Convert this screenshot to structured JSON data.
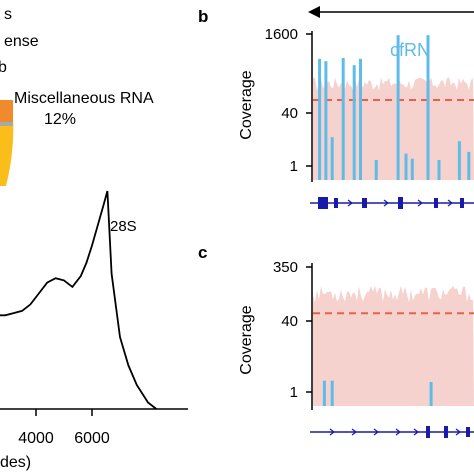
{
  "colors": {
    "axis": "#000000",
    "coverage_bar": "#5fbbe8",
    "background_fill": "#f6d2cf",
    "threshold_line": "#e8604c",
    "gene_model": "#1a1aa8",
    "pie_orange": "#f08a2c",
    "pie_gold": "#fbbd1a",
    "pie_gray": "#a8a8a8",
    "trace": "#000000"
  },
  "panel_a": {
    "legend_fragments": [
      "s",
      "ense",
      "b"
    ],
    "pie_label": "Miscellaneous RNA",
    "pie_percent": "12%",
    "peak_label": "28S",
    "x_ticks": [
      "4000",
      "6000"
    ],
    "x_label_fragment": "des)"
  },
  "panel_b": {
    "letter": "b",
    "ylabel": "Coverage",
    "y_ticks": [
      "1600",
      "40",
      "1"
    ],
    "series_label": "cfRN",
    "arrow": "leftward"
  },
  "panel_c": {
    "letter": "c",
    "ylabel": "Coverage",
    "y_ticks": [
      "350",
      "40",
      "1"
    ]
  },
  "chart_data": [
    {
      "type": "pie",
      "slices": [
        {
          "label": "Miscellaneous RNA",
          "value": 12
        }
      ]
    },
    {
      "type": "line",
      "xlabel": "des)",
      "x_ticks": [
        4000,
        6000
      ],
      "xlim": [
        1400,
        8300
      ],
      "ylim": [
        0,
        1
      ],
      "annotations": [
        "28S"
      ],
      "x": [
        1400,
        1700,
        2000,
        2300,
        2600,
        2900,
        3200,
        3500,
        3800,
        4100,
        4400,
        4700,
        5000,
        5300,
        5600,
        5800,
        6000,
        6200,
        6400,
        6550,
        6700,
        7000,
        7300,
        7600,
        8000,
        8300
      ],
      "y": [
        0.46,
        0.42,
        0.45,
        0.44,
        0.43,
        0.43,
        0.44,
        0.45,
        0.48,
        0.53,
        0.58,
        0.6,
        0.59,
        0.56,
        0.61,
        0.67,
        0.75,
        0.84,
        0.93,
        1.0,
        0.62,
        0.33,
        0.2,
        0.11,
        0.03,
        0.0
      ]
    },
    {
      "type": "area",
      "ylabel": "Coverage",
      "scale": "log",
      "y_ticks": [
        1,
        40,
        1600
      ],
      "ylim": [
        1,
        1600
      ],
      "threshold": 40,
      "series": [
        {
          "name": "cfRN",
          "style": "bars",
          "values": [
            {
              "pos": 0.02,
              "value": 400
            },
            {
              "pos": 0.06,
              "value": 350
            },
            {
              "pos": 0.1,
              "value": 5
            },
            {
              "pos": 0.17,
              "value": 420
            },
            {
              "pos": 0.24,
              "value": 280
            },
            {
              "pos": 0.28,
              "value": 400
            },
            {
              "pos": 0.38,
              "value": 1.4
            },
            {
              "pos": 0.52,
              "value": 1500
            },
            {
              "pos": 0.57,
              "value": 2
            },
            {
              "pos": 0.61,
              "value": 1.5
            },
            {
              "pos": 0.71,
              "value": 1500
            },
            {
              "pos": 0.78,
              "value": 1.4
            },
            {
              "pos": 0.91,
              "value": 4
            },
            {
              "pos": 0.97,
              "value": 2.2
            }
          ]
        }
      ]
    },
    {
      "type": "area",
      "ylabel": "Coverage",
      "scale": "log",
      "y_ticks": [
        1,
        40,
        350
      ],
      "ylim": [
        1,
        350
      ],
      "threshold": 40,
      "series": [
        {
          "style": "bars",
          "values": [
            {
              "pos": 0.05,
              "value": 1.7
            },
            {
              "pos": 0.1,
              "value": 1.7
            },
            {
              "pos": 0.73,
              "value": 1.6
            }
          ]
        }
      ]
    }
  ]
}
